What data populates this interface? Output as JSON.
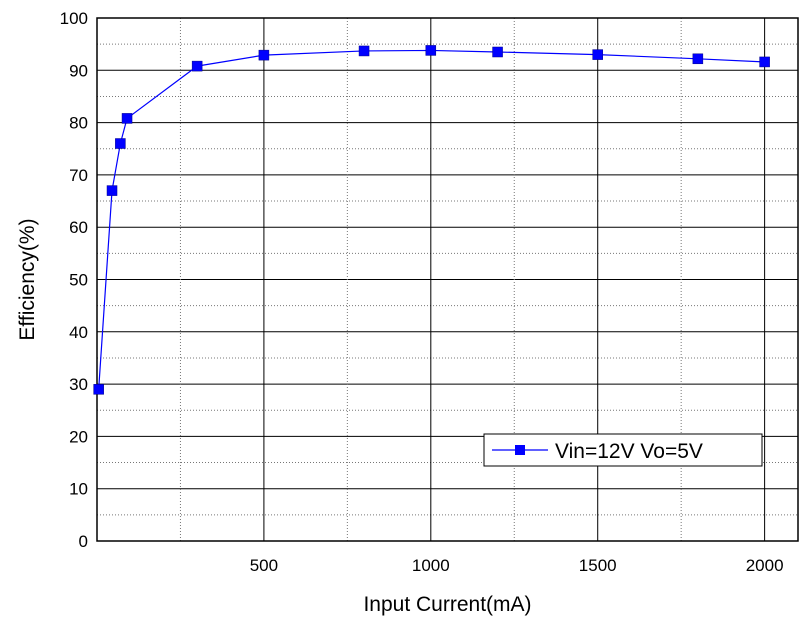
{
  "chart_data": {
    "type": "line",
    "xlabel": "Input Current(mA)",
    "ylabel": "Efficiency(%)",
    "xlim": [
      0,
      2100
    ],
    "ylim": [
      0,
      100
    ],
    "xticks": [
      500,
      1000,
      1500,
      2000
    ],
    "yticks": [
      0,
      10,
      20,
      30,
      40,
      50,
      60,
      70,
      80,
      90,
      100
    ],
    "grid": true,
    "legend_position": "lower-right",
    "series": [
      {
        "name": "Vin=12V Vo=5V",
        "color": "#0000ff",
        "marker": "square",
        "x": [
          5,
          45,
          70,
          90,
          300,
          500,
          800,
          1000,
          1200,
          1500,
          1800,
          2000
        ],
        "y": [
          29,
          67,
          76,
          80.8,
          90.8,
          92.9,
          93.7,
          93.8,
          93.5,
          93.0,
          92.2,
          91.6
        ]
      }
    ]
  }
}
